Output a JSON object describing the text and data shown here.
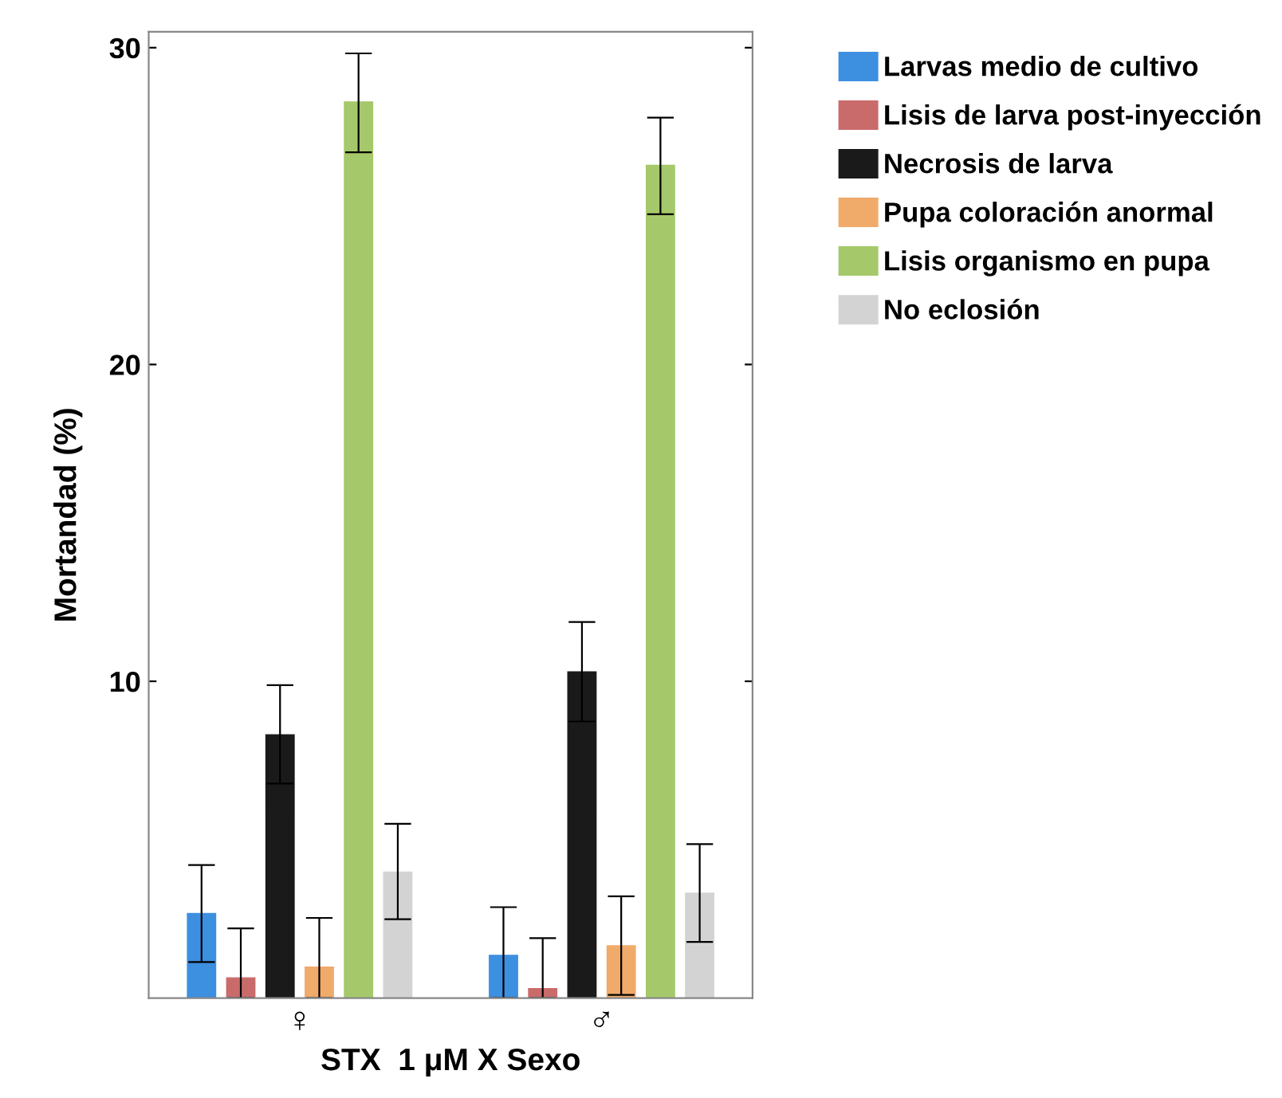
{
  "chart_data": {
    "type": "bar",
    "xlabel": "STX  1 μM X Sexo",
    "ylabel": "Mortandad (%)",
    "categories": [
      "♀",
      "♂"
    ],
    "series": [
      {
        "name": "Larvas medio de cultivo",
        "color": "#3d8fe0",
        "values": [
          2.67,
          1.35
        ],
        "errors": [
          [
            1.14,
            4.2
          ],
          [
            0,
            2.87
          ]
        ]
      },
      {
        "name": "Lisis de larva post-inyección",
        "color": "#c96b6b",
        "values": [
          0.64,
          0.3
        ],
        "errors": [
          [
            0,
            2.2
          ],
          [
            0,
            1.89
          ]
        ]
      },
      {
        "name": "Necrosis de larva",
        "color": "#1a1a1a",
        "values": [
          8.31,
          10.3
        ],
        "errors": [
          [
            6.77,
            9.88
          ],
          [
            8.73,
            11.87
          ]
        ]
      },
      {
        "name": "Pupa coloración anormal",
        "color": "#f0aa6a",
        "values": [
          0.98,
          1.65
        ],
        "errors": [
          [
            0,
            2.53
          ],
          [
            0.1,
            3.21
          ]
        ]
      },
      {
        "name": "Lisis organismo en pupa",
        "color": "#a5c96a",
        "values": [
          28.29,
          26.29
        ],
        "errors": [
          [
            26.7,
            29.82
          ],
          [
            24.74,
            27.79
          ]
        ]
      },
      {
        "name": "No eclosión",
        "color": "#d3d3d3",
        "values": [
          3.98,
          3.31
        ],
        "errors": [
          [
            2.49,
            5.5
          ],
          [
            1.77,
            4.86
          ]
        ]
      }
    ],
    "ylim": [
      0,
      30.5
    ],
    "yticks": [
      10,
      20,
      30
    ],
    "grid": false,
    "legend": "top right"
  }
}
